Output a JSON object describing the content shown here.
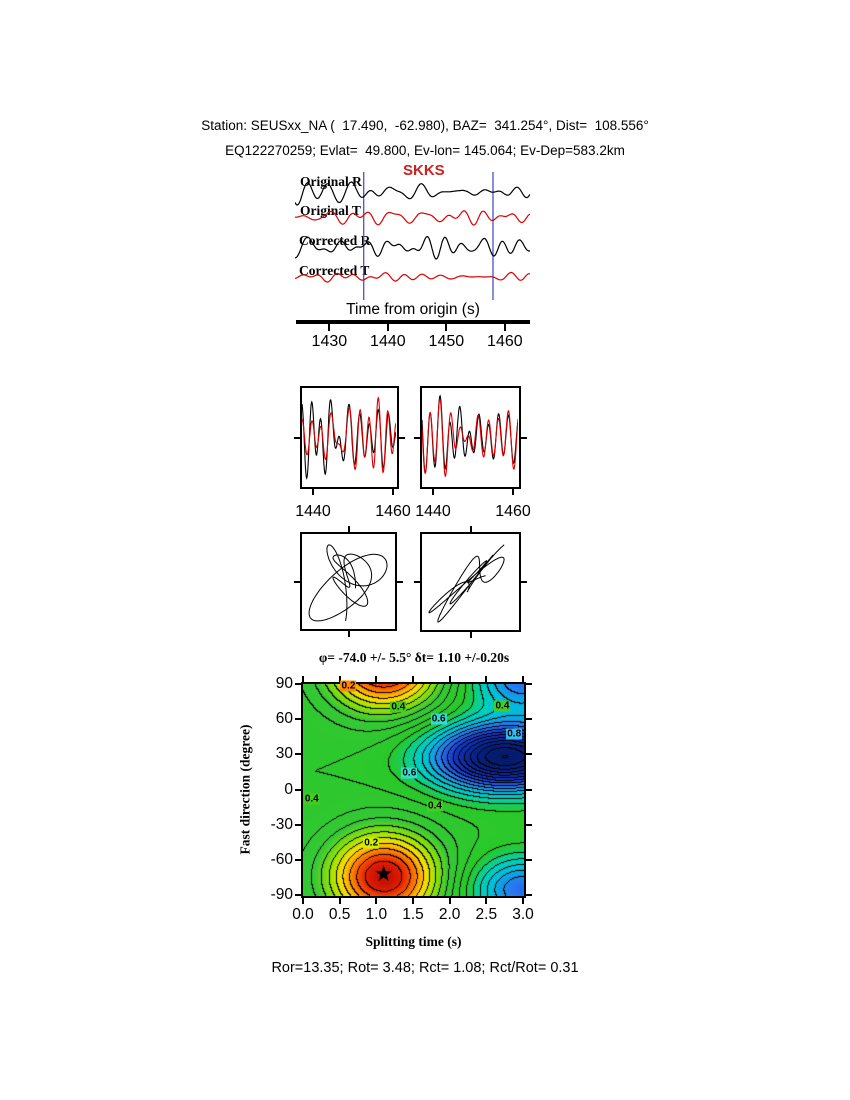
{
  "header": {
    "line1": "Station: SEUSxx_NA (  17.490,  -62.980), BAZ=  341.254°, Dist=  108.556°",
    "line2": "EQ122270259; Evlat=  49.800, Ev-lon= 145.064; Ev-Dep=583.2km"
  },
  "footer": {
    "stats": "Ror=13.35; Rot= 3.48; Rct= 1.08; Rct/Rot= 0.31"
  },
  "colors": {
    "trace_black": "#000000",
    "trace_red": "#dd0000",
    "window_marker_blue": "#4455cc",
    "phase_label_red": "#cc2222",
    "star_black": "#000000"
  },
  "chart_data": [
    {
      "type": "line",
      "panel": "seismograms",
      "phase_label": "SKKS",
      "xlabel": "Time from origin (s)",
      "xlim": [
        1424.3,
        1464.3
      ],
      "xticks": [
        1430,
        1440,
        1450,
        1460
      ],
      "window_s": [
        1436,
        1458
      ],
      "traces": [
        {
          "label": "Original R",
          "color": "#000000",
          "seed": 11
        },
        {
          "label": "Original T",
          "color": "#dd0000",
          "seed": 22
        },
        {
          "label": "Corrected R",
          "color": "#000000",
          "seed": 33
        },
        {
          "label": "Corrected T",
          "color": "#dd0000",
          "seed": 47
        }
      ]
    },
    {
      "type": "line",
      "panel": "waveform-overlay",
      "xticks": [
        1440,
        1460
      ],
      "colors": [
        "#000000",
        "#dd0000"
      ],
      "panels": [
        {
          "seed": 7
        },
        {
          "seed": 19
        }
      ]
    },
    {
      "type": "scatter",
      "panel": "particle-motion",
      "panels": [
        {
          "seed": 5,
          "correlation": 0.0
        },
        {
          "seed": 6,
          "correlation": 0.8
        }
      ]
    },
    {
      "type": "heatmap",
      "panel": "splitting-error-surface",
      "title": "φ= -74.0 +/- 5.5° δt= 1.10 +/-0.20s",
      "xlabel": "Splitting time (s)",
      "ylabel": "Fast direction (degree)",
      "xlim": [
        0,
        3
      ],
      "ylim": [
        -90,
        90
      ],
      "xticks": [
        "0.0",
        "0.5",
        "1.0",
        "1.5",
        "2.0",
        "2.5",
        "3.0"
      ],
      "yticks": [
        "90",
        "60",
        "30",
        "0",
        "-30",
        "-60",
        "-90"
      ],
      "phi_deg": -74.0,
      "phi_err_deg": 5.5,
      "dt_s": 1.1,
      "dt_err_s": 0.2,
      "best_fit": {
        "splitting_time_s": 1.1,
        "fast_direction_deg": -74.0,
        "marker_glyph": "★"
      },
      "contour_interval": 0.05,
      "contour_labels": [
        {
          "text": "0.2",
          "dt": 0.62,
          "phi": 88,
          "bg": "#ff8800"
        },
        {
          "text": "0.4",
          "dt": 1.3,
          "phi": 70,
          "bg": "#44cc22"
        },
        {
          "text": "0.6",
          "dt": 1.85,
          "phi": 60,
          "bg": "#33ddcc"
        },
        {
          "text": "0.4",
          "dt": 2.72,
          "phi": 71,
          "bg": "#44cc22"
        },
        {
          "text": "0.8",
          "dt": 2.88,
          "phi": 47,
          "bg": "#33bbee"
        },
        {
          "text": "0.6",
          "dt": 1.45,
          "phi": 14,
          "bg": "#33ddcc"
        },
        {
          "text": "0.4",
          "dt": 0.12,
          "phi": -8,
          "bg": "#44cc22"
        },
        {
          "text": "0.4",
          "dt": 1.8,
          "phi": -14,
          "bg": "#44cc22"
        },
        {
          "text": "0.2",
          "dt": 0.93,
          "phi": -46,
          "bg": "#ccee00"
        }
      ],
      "field": {
        "base": 0.55,
        "well": {
          "dt": 1.1,
          "phi": -74,
          "sx": 0.55,
          "sy": 28,
          "amp": 0.5
        },
        "peak": {
          "dt": 2.75,
          "phi": 28,
          "sx": 0.7,
          "sy": 20,
          "amp": 0.75
        },
        "peak2": {
          "dt": 3.0,
          "phi": -85,
          "sx": 0.5,
          "sy": 20,
          "amp": 0.35
        }
      },
      "colormap_stops": [
        [
          0.0,
          "#a00000"
        ],
        [
          0.1,
          "#e62000"
        ],
        [
          0.18,
          "#ff7800"
        ],
        [
          0.26,
          "#ffdc00"
        ],
        [
          0.34,
          "#a0e600"
        ],
        [
          0.44,
          "#37c837"
        ],
        [
          0.6,
          "#28c828"
        ],
        [
          0.7,
          "#00d2b4"
        ],
        [
          0.78,
          "#00bedc"
        ],
        [
          0.88,
          "#2878f0"
        ],
        [
          1.0,
          "#1436c8"
        ],
        [
          1.2,
          "#06207e"
        ],
        [
          1.45,
          "#02124b"
        ]
      ]
    }
  ]
}
